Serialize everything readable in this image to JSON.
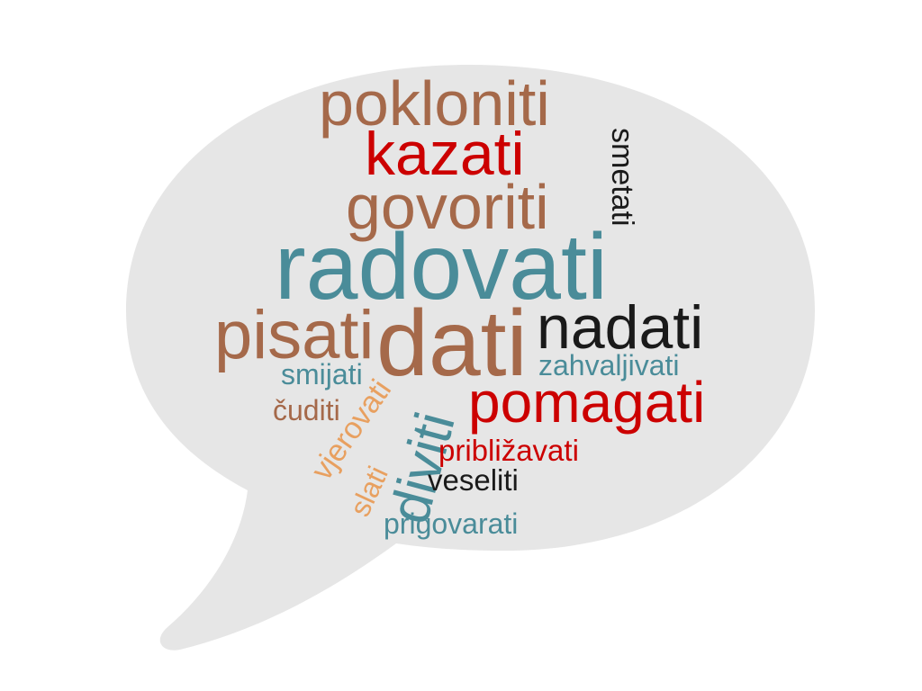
{
  "palette": {
    "bubble_fill": "#e6e6e6",
    "brown": "#a5694a",
    "red": "#cc0000",
    "teal": "#4a8c99",
    "black": "#1a1a1a",
    "orange": "#e8a060"
  },
  "words": {
    "pokloniti": "pokloniti",
    "kazati": "kazati",
    "smetati": "smetati",
    "govoriti": "govoriti",
    "radovati": "radovati",
    "pisati": "pisati",
    "dati": "dati",
    "nadati": "nadati",
    "smijati": "smijati",
    "zahvaljivati": "zahvaljivati",
    "cuditi": "čuditi",
    "pomagati": "pomagati",
    "vjerovati": "vjerovati",
    "diviti": "diviti",
    "priblizavati": "približavati",
    "slati": "slati",
    "veseliti": "veseliti",
    "prigovarati": "prigovarati"
  }
}
